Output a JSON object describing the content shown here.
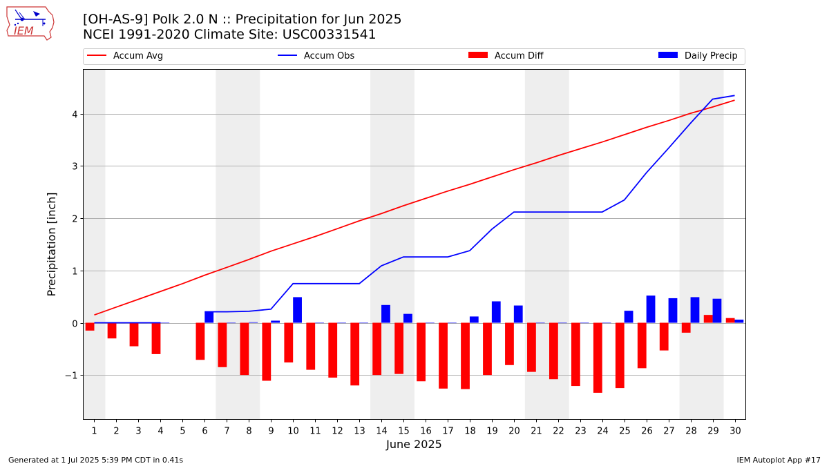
{
  "header": {
    "title_line1": "[OH-AS-9] Polk 2.0 N :: Precipitation for Jun 2025",
    "title_line2": "NCEI 1991-2020 Climate Site: USC00331541"
  },
  "logo": {
    "text": "IEM"
  },
  "footer": {
    "generated": "Generated at 1 Jul 2025 5:39 PM CDT in 0.41s",
    "app": "IEM Autoplot App #17"
  },
  "colors": {
    "accum_avg": "#ff0000",
    "accum_obs": "#0000ff",
    "accum_diff": "#ff0000",
    "daily_precip": "#0000ff",
    "weekend_shade": "#eeeeee",
    "grid": "#b0b0b0"
  },
  "legend": {
    "accum_avg": "Accum Avg",
    "accum_obs": "Accum Obs",
    "accum_diff": "Accum Diff",
    "daily_precip": "Daily Precip"
  },
  "chart_data": {
    "type": "bar",
    "xlabel": "June 2025",
    "ylabel": "Precipitation [inch]",
    "xlim": [
      0.5,
      30.5
    ],
    "ylim": [
      -1.85,
      4.85
    ],
    "yticks": [
      -1,
      0,
      1,
      2,
      3,
      4
    ],
    "grid": "horizontal",
    "legend_placement": "top",
    "shaded_weekend_ranges": [
      [
        0.5,
        1.5
      ],
      [
        6.5,
        8.5
      ],
      [
        13.5,
        15.5
      ],
      [
        20.5,
        22.5
      ],
      [
        27.5,
        29.5
      ]
    ],
    "days": [
      1,
      2,
      3,
      4,
      5,
      6,
      7,
      8,
      9,
      10,
      11,
      12,
      13,
      14,
      15,
      16,
      17,
      18,
      19,
      20,
      21,
      22,
      23,
      24,
      25,
      26,
      27,
      28,
      29,
      30
    ],
    "series": [
      {
        "name": "Accum Avg",
        "kind": "line",
        "values": [
          0.15,
          0.3,
          0.45,
          0.6,
          0.75,
          0.91,
          1.06,
          1.21,
          1.37,
          1.51,
          1.65,
          1.8,
          1.95,
          2.09,
          2.24,
          2.38,
          2.52,
          2.65,
          2.79,
          2.93,
          3.06,
          3.2,
          3.33,
          3.46,
          3.6,
          3.74,
          3.87,
          4.01,
          4.13,
          4.26
        ]
      },
      {
        "name": "Accum Obs",
        "kind": "line",
        "values": [
          0.0,
          0.0,
          0.0,
          0.0,
          null,
          0.21,
          0.21,
          0.22,
          0.26,
          0.75,
          0.75,
          0.75,
          0.75,
          1.09,
          1.26,
          1.26,
          1.26,
          1.38,
          1.79,
          2.12,
          2.12,
          2.12,
          2.12,
          2.12,
          2.35,
          2.87,
          3.34,
          3.82,
          4.28,
          4.35
        ]
      },
      {
        "name": "Accum Diff",
        "kind": "bar",
        "values": [
          -0.15,
          -0.3,
          -0.45,
          -0.6,
          null,
          -0.71,
          -0.85,
          -1.0,
          -1.11,
          -0.76,
          -0.9,
          -1.05,
          -1.2,
          -1.0,
          -0.98,
          -1.12,
          -1.26,
          -1.27,
          -1.0,
          -0.81,
          -0.94,
          -1.08,
          -1.21,
          -1.34,
          -1.25,
          -0.87,
          -0.53,
          -0.19,
          0.15,
          0.09
        ]
      },
      {
        "name": "Daily Precip",
        "kind": "bar",
        "values": [
          0.0,
          0.0,
          0.0,
          0.0,
          null,
          0.21,
          0.0,
          0.01,
          0.04,
          0.49,
          0.0,
          0.0,
          0.0,
          0.34,
          0.17,
          0.0,
          0.0,
          0.12,
          0.41,
          0.33,
          0.0,
          0.0,
          0.0,
          0.0,
          0.23,
          0.52,
          0.47,
          0.49,
          0.46,
          0.06
        ]
      }
    ]
  }
}
